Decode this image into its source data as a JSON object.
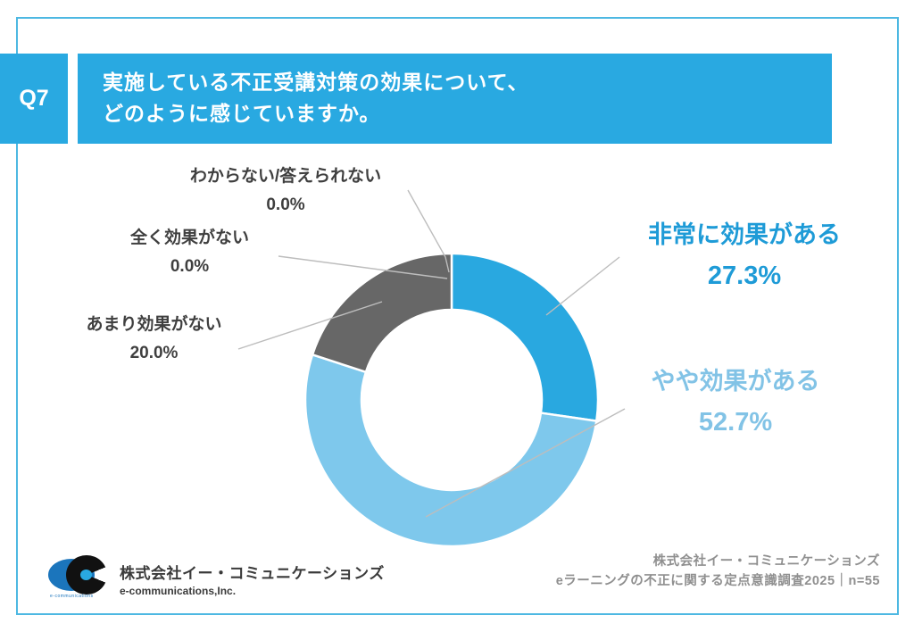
{
  "header": {
    "q_number": "Q7",
    "title_line1": "実施している不正受講対策の効果について、",
    "title_line2": "どのように感じていますか。",
    "banner_color": "#29a9e1"
  },
  "chart_data": {
    "type": "pie",
    "subtype": "donut",
    "title": "実施している不正受講対策の効果について、どのように感じていますか。",
    "n": 55,
    "start_angle_deg": 0,
    "direction": "clockwise",
    "inner_radius_ratio": 0.62,
    "slices": [
      {
        "key": "very-effective",
        "label": "非常に効果がある",
        "value": 27.3,
        "pct_label": "27.3%",
        "color": "#29a8e0",
        "label_color": "#1e9bd7"
      },
      {
        "key": "somewhat-effective",
        "label": "やや効果がある",
        "value": 52.7,
        "pct_label": "52.7%",
        "color": "#7ec8ec",
        "label_color": "#82c3e6"
      },
      {
        "key": "little-effect",
        "label": "あまり効果がない",
        "value": 20.0,
        "pct_label": "20.0%",
        "color": "#676767",
        "label_color": "#3f3f3f"
      },
      {
        "key": "no-effect",
        "label": "全く効果がない",
        "value": 0.0,
        "pct_label": "0.0%",
        "color": "#676767",
        "label_color": "#3f3f3f"
      },
      {
        "key": "unknown",
        "label": "わからない/答えられない",
        "value": 0.0,
        "pct_label": "0.0%",
        "color": "#676767",
        "label_color": "#3f3f3f"
      }
    ]
  },
  "footer": {
    "logo_icon": "e-communications-logo",
    "logo_tiny_text": "e-communications",
    "company_name": "株式会社イー・コミュニケーションズ",
    "company_name_en": "e-communications,Inc.",
    "source_line1": "株式会社イー・コミュニケーションズ",
    "source_line2": "eラーニングの不正に関する定点意識調査2025｜n=55"
  },
  "frame_color": "#4db8e2"
}
